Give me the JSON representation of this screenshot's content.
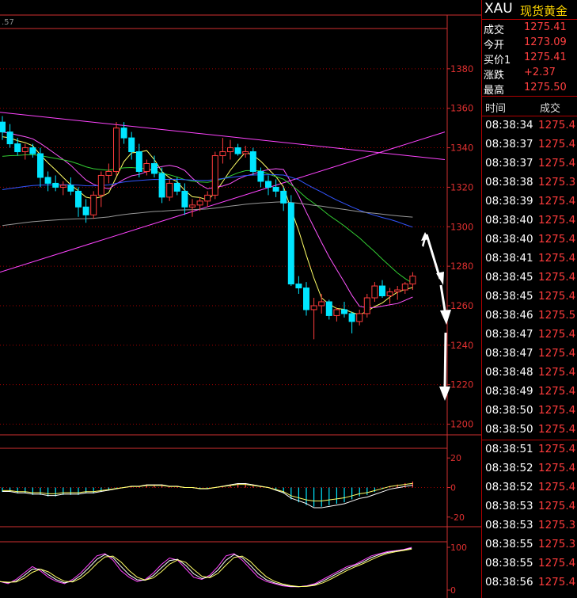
{
  "colors": {
    "up": "#ff3c3c",
    "down": "#00e5ff",
    "grid": "#a00000",
    "axis": "#d03030",
    "ma5": "#ffff66",
    "ma10": "#ff55ff",
    "ma20": "#33cc33",
    "ma60": "#3355ff",
    "ma120": "#999999",
    "trend": "#ff44ff"
  },
  "header": {
    "partial_label": ".57"
  },
  "quote": {
    "symbol": "XAU",
    "name": "现货黄金",
    "rows": [
      {
        "label": "成交",
        "value": "1275.41"
      },
      {
        "label": "今开",
        "value": "1273.09"
      },
      {
        "label": "买价1",
        "value": "1275.41"
      },
      {
        "label": "涨跌",
        "value": "+2.37"
      },
      {
        "label": "最高",
        "value": "1275.50"
      }
    ]
  },
  "ticks": {
    "headers": {
      "time": "时间",
      "price": "成交"
    },
    "rows": [
      {
        "time": "08:38:34",
        "price": "1275.4"
      },
      {
        "time": "08:38:37",
        "price": "1275.4"
      },
      {
        "time": "08:38:37",
        "price": "1275.4"
      },
      {
        "time": "08:38:38",
        "price": "1275.3"
      },
      {
        "time": "08:38:39",
        "price": "1275.4"
      },
      {
        "time": "08:38:40",
        "price": "1275.4"
      },
      {
        "time": "08:38:40",
        "price": "1275.4"
      },
      {
        "time": "08:38:41",
        "price": "1275.4"
      },
      {
        "time": "08:38:45",
        "price": "1275.4"
      },
      {
        "time": "08:38:45",
        "price": "1275.4"
      },
      {
        "time": "08:38:46",
        "price": "1275.5"
      },
      {
        "time": "08:38:47",
        "price": "1275.4"
      },
      {
        "time": "08:38:47",
        "price": "1275.4"
      },
      {
        "time": "08:38:48",
        "price": "1275.4"
      },
      {
        "time": "08:38:49",
        "price": "1275.4"
      },
      {
        "time": "08:38:50",
        "price": "1275.4"
      },
      {
        "time": "08:38:50",
        "price": "1275.4"
      },
      {
        "time": "08:38:51",
        "price": "1275.4"
      },
      {
        "time": "08:38:52",
        "price": "1275.4"
      },
      {
        "time": "08:38:52",
        "price": "1275.4"
      },
      {
        "time": "08:38:53",
        "price": "1275.4"
      },
      {
        "time": "08:38:53",
        "price": "1275.3"
      },
      {
        "time": "08:38:55",
        "price": "1275.3"
      },
      {
        "time": "08:38:55",
        "price": "1275.4"
      },
      {
        "time": "08:38:56",
        "price": "1275.4"
      }
    ]
  },
  "chart_data": [
    {
      "type": "candlestick",
      "y_ticks": [
        1380,
        1360,
        1340,
        1320,
        1300,
        1280,
        1260,
        1240,
        1220,
        1200
      ],
      "ylim": [
        1195,
        1400
      ],
      "grid": true,
      "candles": [
        [
          1353,
          1356,
          1344,
          1348
        ],
        [
          1348,
          1352,
          1340,
          1342
        ],
        [
          1342,
          1345,
          1336,
          1338
        ],
        [
          1338,
          1342,
          1334,
          1340
        ],
        [
          1340,
          1342,
          1335,
          1337
        ],
        [
          1337,
          1340,
          1320,
          1325
        ],
        [
          1325,
          1328,
          1318,
          1322
        ],
        [
          1322,
          1326,
          1318,
          1320
        ],
        [
          1320,
          1323,
          1316,
          1321
        ],
        [
          1321,
          1325,
          1316,
          1318
        ],
        [
          1318,
          1320,
          1305,
          1310
        ],
        [
          1310,
          1314,
          1302,
          1306
        ],
        [
          1306,
          1318,
          1304,
          1316
        ],
        [
          1316,
          1328,
          1310,
          1326
        ],
        [
          1326,
          1332,
          1322,
          1328
        ],
        [
          1328,
          1353,
          1326,
          1350
        ],
        [
          1350,
          1353,
          1342,
          1345
        ],
        [
          1345,
          1348,
          1334,
          1338
        ],
        [
          1338,
          1342,
          1325,
          1328
        ],
        [
          1328,
          1334,
          1326,
          1332
        ],
        [
          1332,
          1336,
          1325,
          1327
        ],
        [
          1327,
          1330,
          1312,
          1315
        ],
        [
          1315,
          1324,
          1313,
          1322
        ],
        [
          1322,
          1325,
          1316,
          1318
        ],
        [
          1318,
          1322,
          1306,
          1310
        ],
        [
          1310,
          1314,
          1305,
          1311
        ],
        [
          1311,
          1315,
          1308,
          1313
        ],
        [
          1313,
          1318,
          1310,
          1316
        ],
        [
          1316,
          1338,
          1314,
          1336
        ],
        [
          1336,
          1345,
          1332,
          1338
        ],
        [
          1338,
          1344,
          1334,
          1340
        ],
        [
          1340,
          1342,
          1336,
          1337
        ],
        [
          1337,
          1341,
          1335,
          1338
        ],
        [
          1338,
          1340,
          1326,
          1328
        ],
        [
          1328,
          1330,
          1320,
          1323
        ],
        [
          1323,
          1326,
          1316,
          1320
        ],
        [
          1320,
          1324,
          1315,
          1318
        ],
        [
          1318,
          1320,
          1308,
          1312
        ],
        [
          1312,
          1316,
          1270,
          1271
        ],
        [
          1271,
          1275,
          1266,
          1269
        ],
        [
          1269,
          1272,
          1255,
          1258
        ],
        [
          1258,
          1264,
          1243,
          1260
        ],
        [
          1260,
          1266,
          1256,
          1262
        ],
        [
          1262,
          1263,
          1253,
          1255
        ],
        [
          1255,
          1259,
          1252,
          1258
        ],
        [
          1258,
          1262,
          1254,
          1256
        ],
        [
          1256,
          1257,
          1246,
          1252
        ],
        [
          1252,
          1258,
          1250,
          1256
        ],
        [
          1256,
          1266,
          1254,
          1264
        ],
        [
          1264,
          1272,
          1262,
          1270
        ],
        [
          1270,
          1273,
          1264,
          1265
        ],
        [
          1265,
          1269,
          1261,
          1267
        ],
        [
          1267,
          1270,
          1263,
          1268
        ],
        [
          1268,
          1272,
          1266,
          1271
        ],
        [
          1271,
          1277,
          1268,
          1275
        ]
      ]
    },
    {
      "type": "bar",
      "name": "MACD",
      "y_ticks": [
        20,
        0,
        -20
      ],
      "ylim": [
        -26,
        26
      ],
      "values": [
        -3,
        -3,
        -4,
        -4,
        -5,
        -5,
        -6,
        -6,
        -5,
        -5,
        -5,
        -4,
        -4,
        -3,
        -2,
        -1,
        0,
        1,
        1,
        2,
        2,
        2,
        1,
        1,
        0,
        0,
        -1,
        -1,
        0,
        1,
        2,
        3,
        3,
        2,
        1,
        0,
        -2,
        -4,
        -8,
        -10,
        -12,
        -13,
        -13,
        -12,
        -11,
        -10,
        -8,
        -6,
        -5,
        -3,
        -1,
        1,
        2,
        3,
        4
      ]
    },
    {
      "type": "line",
      "name": "KDJ",
      "y_ticks": [
        100,
        0
      ],
      "ylim": [
        0,
        100
      ],
      "values": [
        20,
        15,
        25,
        40,
        55,
        45,
        30,
        20,
        15,
        25,
        40,
        60,
        80,
        85,
        70,
        45,
        30,
        20,
        25,
        40,
        60,
        75,
        70,
        50,
        30,
        25,
        35,
        55,
        80,
        85,
        70,
        50,
        30,
        20,
        15,
        10,
        8,
        8,
        10,
        15,
        25,
        35,
        45,
        55,
        60,
        70,
        80,
        85,
        90,
        92,
        95,
        100
      ]
    }
  ]
}
